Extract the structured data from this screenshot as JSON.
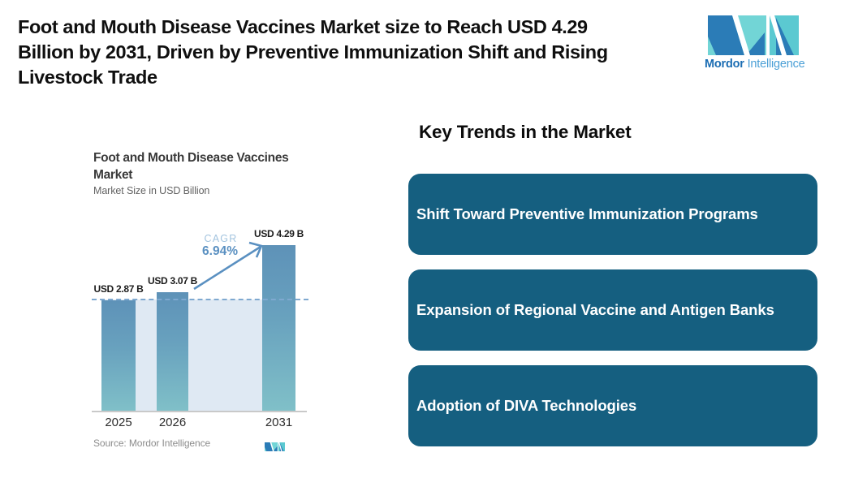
{
  "header": {
    "title_lines": [
      "Foot and Mouth Disease Vaccines Market size to Reach USD 4.29",
      "Billion by 2031, Driven by Preventive Immunization Shift and Rising",
      "Livestock Trade"
    ],
    "logo": {
      "brand_bold": "Mordor",
      "brand_light": "Intelligence"
    }
  },
  "chart": {
    "title_lines": [
      "Foot and Mouth Disease Vaccines",
      "Market"
    ],
    "subtitle": "Market Size in USD Billion",
    "cagr_label": "CAGR",
    "cagr_value": "6.94%",
    "source_label": "Source: Mordor Intelligence"
  },
  "chart_data": {
    "type": "bar",
    "title": "Foot and Mouth Disease Vaccines Market",
    "subtitle": "Market Size in USD Billion",
    "unit": "USD Billion",
    "categories": [
      "2025",
      "2026",
      "2031"
    ],
    "values": [
      2.87,
      3.07,
      4.29
    ],
    "bar_labels": [
      "USD 2.87 B",
      "USD 3.07 B",
      "USD 4.29 B"
    ],
    "cagr": {
      "label": "CAGR",
      "value": "6.94%",
      "arrow_from": "2026",
      "arrow_to": "2031"
    },
    "dashed_reference_level": 2.87,
    "ylim": [
      0,
      4.5
    ],
    "grid": false,
    "legend": false,
    "source": "Source: Mordor Intelligence"
  },
  "trends": {
    "heading": "Key Trends in the Market",
    "cards": [
      {
        "label": "Shift Toward Preventive Immunization Programs"
      },
      {
        "label": "Expansion of Regional Vaccine and Antigen Banks"
      },
      {
        "label": "Adoption of DIVA Technologies"
      }
    ]
  },
  "colors": {
    "card_bg": "#155f80",
    "card_text": "#ffffff",
    "bar_top": "#5e92b8",
    "bar_bottom": "#80c0c8",
    "band": "#dfe9f3",
    "dashed_line": "#7fa9d0",
    "cagr_light": "#a3c4df",
    "cagr_strong": "#5a90c1",
    "logo_teal": "#72d5d6",
    "logo_blue": "#2b7cb7",
    "brand_bold_text": "#1b6db3",
    "brand_light_text": "#4a9fd6"
  }
}
